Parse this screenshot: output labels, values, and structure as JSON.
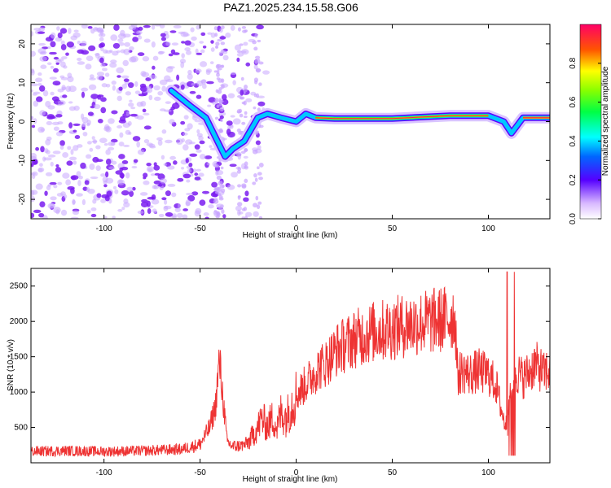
{
  "title": "PAZ1.2025.234.15.58.G06",
  "chart_data": [
    {
      "type": "heatmap",
      "title": "PAZ1.2025.234.15.58.G06",
      "xlabel": "Height of straight line (km)",
      "ylabel": "Frequency (Hz)",
      "xlim": [
        -138,
        132
      ],
      "ylim": [
        -25,
        25
      ],
      "xticks": [
        -100,
        -50,
        0,
        50,
        100
      ],
      "yticks": [
        -20,
        -10,
        0,
        10,
        20
      ],
      "colorbar": {
        "label": "Normalized spectral amplitude",
        "range": [
          0,
          1
        ],
        "ticks": [
          0.0,
          0.2,
          0.4,
          0.6,
          0.8
        ]
      },
      "ridge": [
        {
          "x": -65,
          "y": 8
        },
        {
          "x": -55,
          "y": 4
        },
        {
          "x": -47,
          "y": 1
        },
        {
          "x": -44,
          "y": -2
        },
        {
          "x": -40,
          "y": -6
        },
        {
          "x": -37,
          "y": -9
        },
        {
          "x": -33,
          "y": -7
        },
        {
          "x": -27,
          "y": -5
        },
        {
          "x": -20,
          "y": 1
        },
        {
          "x": -15,
          "y": 2
        },
        {
          "x": -8,
          "y": 1
        },
        {
          "x": 0,
          "y": 0
        },
        {
          "x": 5,
          "y": 2
        },
        {
          "x": 10,
          "y": 1
        },
        {
          "x": 20,
          "y": 0.8
        },
        {
          "x": 50,
          "y": 0.8
        },
        {
          "x": 80,
          "y": 1.5
        },
        {
          "x": 100,
          "y": 1.5
        },
        {
          "x": 108,
          "y": 0
        },
        {
          "x": 112,
          "y": -3
        },
        {
          "x": 118,
          "y": 1
        },
        {
          "x": 132,
          "y": 1
        }
      ]
    },
    {
      "type": "line",
      "xlabel": "Height of straight line (km)",
      "ylabel": "SNR (10 * v/v)",
      "xlim": [
        -138,
        132
      ],
      "ylim": [
        0,
        2750
      ],
      "xticks": [
        -100,
        -50,
        0,
        50,
        100
      ],
      "yticks": [
        500,
        1000,
        1500,
        2000,
        2500
      ],
      "color": "#ee3333",
      "series": [
        {
          "name": "SNR",
          "x": [
            -138,
            -120,
            -100,
            -80,
            -60,
            -50,
            -45,
            -42,
            -40,
            -38,
            -36,
            -33,
            -30,
            -27,
            -24,
            -22,
            -20,
            -18,
            -15,
            -12,
            -10,
            -8,
            -5,
            -2,
            0,
            3,
            6,
            9,
            12,
            15,
            18,
            21,
            24,
            27,
            30,
            35,
            40,
            45,
            50,
            55,
            60,
            65,
            70,
            75,
            80,
            82,
            83,
            84,
            85,
            87,
            90,
            95,
            100,
            104,
            106,
            108,
            110,
            111,
            112,
            113,
            114,
            116,
            118,
            120,
            122,
            124,
            126,
            128,
            129,
            130,
            132
          ],
          "y": [
            160,
            170,
            160,
            170,
            190,
            260,
            500,
            800,
            1450,
            900,
            300,
            230,
            240,
            250,
            320,
            420,
            500,
            620,
            520,
            640,
            480,
            700,
            650,
            850,
            950,
            1050,
            1150,
            1250,
            1350,
            1400,
            1500,
            1600,
            1650,
            1700,
            1750,
            1800,
            1850,
            1870,
            1900,
            1930,
            1960,
            1980,
            2000,
            2020,
            2050,
            2080,
            1900,
            1200,
            1280,
            1300,
            1250,
            1300,
            1250,
            1100,
            850,
            600,
            500,
            900,
            1200,
            1000,
            1300,
            1250,
            1200,
            1250,
            1300,
            1400,
            1350,
            1300,
            1250,
            1300,
            1280
          ]
        }
      ]
    }
  ]
}
